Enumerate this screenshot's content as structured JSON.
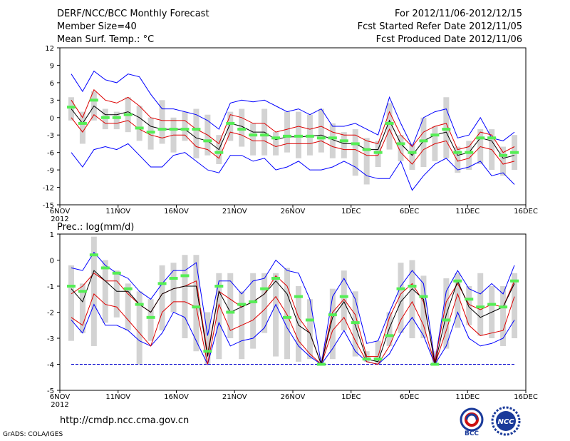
{
  "header": {
    "title": "DERF/NCC/BCC Monthly Forecast",
    "member_size": "Member Size=40",
    "variable": "Mean Surf. Temp.: °C",
    "period": "For 2012/11/06-2012/12/15",
    "started": "Fcst Started Refer Date 2012/11/05",
    "produced": "Fcst Produced Date 2012/11/06"
  },
  "footer": {
    "url": "http://cmdp.ncc.cma.gov.cn",
    "credit": "GrADS: COLA/IGES",
    "logo_left_text": "BCC",
    "logo_right_text": "NCC"
  },
  "colors": {
    "box": "#d3d3d3",
    "max_min": "#0000ff",
    "spread": "#dd0000",
    "mean": "#000000",
    "median": "#55ee55",
    "floor": "#0000cc"
  },
  "chart_data": [
    {
      "type": "line",
      "title": "Mean Surf. Temp.: °C",
      "x_tick_labels": [
        "6NOV",
        "11NOV",
        "16NOV",
        "21NOV",
        "26NOV",
        "1DEC",
        "6DEC",
        "11DEC",
        "16DEC"
      ],
      "year_label": "2012",
      "ylim": [
        -15,
        12
      ],
      "yticks": [
        "12",
        "9",
        "6",
        "3",
        "0",
        "-3",
        "-6",
        "-9",
        "-12",
        "-15"
      ],
      "days": 40,
      "series": [
        {
          "name": "max",
          "values": [
            7.5,
            4.5,
            8.0,
            6.5,
            6.0,
            7.5,
            7.0,
            4.0,
            1.5,
            1.5,
            1.0,
            0.5,
            -0.5,
            -2.0,
            2.5,
            3.0,
            2.7,
            3.0,
            2.0,
            1.0,
            1.5,
            0.5,
            1.5,
            -1.5,
            -1.5,
            -1.0,
            -2.0,
            -3.0,
            3.5,
            -1.0,
            -5.0,
            0.0,
            1.0,
            1.5,
            -3.5,
            -3.0,
            0.0,
            -3.5,
            -4.0,
            -2.5
          ]
        },
        {
          "name": "upper",
          "values": [
            3.0,
            0.0,
            4.8,
            3.0,
            2.5,
            3.5,
            2.0,
            0.0,
            -0.5,
            -0.5,
            -0.5,
            -2.0,
            -3.0,
            -4.5,
            0.5,
            0.0,
            -1.0,
            -1.0,
            -2.5,
            -2.0,
            -1.5,
            -2.0,
            -1.5,
            -2.5,
            -3.0,
            -3.0,
            -4.0,
            -4.5,
            1.0,
            -3.0,
            -5.0,
            -2.5,
            -1.5,
            -1.0,
            -5.5,
            -5.0,
            -2.5,
            -3.0,
            -6.0,
            -5.0
          ]
        },
        {
          "name": "mean",
          "values": [
            1.5,
            -1.0,
            2.0,
            0.5,
            0.5,
            1.0,
            0.0,
            -1.5,
            -2.0,
            -2.0,
            -2.0,
            -3.5,
            -4.0,
            -5.5,
            -1.0,
            -1.5,
            -2.5,
            -2.5,
            -3.8,
            -3.3,
            -3.3,
            -3.2,
            -3.0,
            -3.8,
            -4.5,
            -4.5,
            -5.5,
            -5.5,
            -0.5,
            -4.5,
            -6.5,
            -4.0,
            -3.0,
            -2.5,
            -6.5,
            -6.0,
            -3.5,
            -4.0,
            -7.0,
            -6.5
          ]
        },
        {
          "name": "lower",
          "values": [
            0.0,
            -2.5,
            0.5,
            -1.0,
            -1.0,
            -0.5,
            -2.0,
            -3.0,
            -3.5,
            -3.0,
            -3.0,
            -5.0,
            -5.5,
            -7.0,
            -2.5,
            -3.0,
            -4.0,
            -4.0,
            -5.0,
            -4.5,
            -4.5,
            -4.5,
            -4.0,
            -5.0,
            -5.5,
            -5.5,
            -6.5,
            -6.5,
            -2.0,
            -6.0,
            -8.0,
            -5.5,
            -4.5,
            -4.0,
            -7.5,
            -7.0,
            -5.0,
            -5.5,
            -8.0,
            -7.5
          ]
        },
        {
          "name": "min",
          "values": [
            -6.0,
            -8.5,
            -5.5,
            -5.0,
            -5.5,
            -4.5,
            -6.5,
            -8.5,
            -8.5,
            -6.5,
            -6.0,
            -7.5,
            -9.0,
            -9.5,
            -6.5,
            -6.5,
            -7.5,
            -7.0,
            -9.0,
            -8.5,
            -7.5,
            -9.0,
            -9.0,
            -8.5,
            -7.5,
            -8.5,
            -10.0,
            -10.5,
            -10.5,
            -7.5,
            -12.5,
            -10.0,
            -8.0,
            -7.0,
            -9.0,
            -8.5,
            -7.5,
            -10.0,
            -9.5,
            -11.5
          ]
        },
        {
          "name": "median",
          "values": [
            1.8,
            -1.0,
            3.0,
            0.0,
            0.0,
            0.5,
            -1.8,
            -2.5,
            -2.0,
            -2.0,
            -2.0,
            -2.0,
            -4.0,
            -6.0,
            -1.0,
            -2.0,
            -3.0,
            -3.0,
            -3.5,
            -3.2,
            -3.2,
            -3.2,
            -3.5,
            -3.5,
            -4.0,
            -4.5,
            -5.5,
            -6.0,
            -1.0,
            -4.5,
            -6.0,
            -4.0,
            -3.0,
            -2.0,
            -6.0,
            -6.0,
            -3.5,
            -3.5,
            -6.5,
            -6.0
          ]
        },
        {
          "name": "box_top",
          "values": [
            3.5,
            1.0,
            4.5,
            1.5,
            1.0,
            3.5,
            2.0,
            0.0,
            3.0,
            0.0,
            1.0,
            1.5,
            0.5,
            -3.0,
            1.0,
            1.5,
            -1.0,
            1.5,
            -2.5,
            1.0,
            1.0,
            0.5,
            1.5,
            -1.0,
            -2.5,
            -2.0,
            -3.5,
            -4.0,
            2.5,
            -3.0,
            -4.5,
            0.0,
            -1.5,
            3.5,
            -5.0,
            -4.0,
            -2.0,
            -2.0,
            -5.0,
            -3.0
          ]
        },
        {
          "name": "box_bottom",
          "values": [
            -0.5,
            -4.5,
            -0.5,
            -2.0,
            -2.0,
            -2.5,
            -4.0,
            -5.5,
            -4.5,
            -6.0,
            -4.0,
            -7.0,
            -6.5,
            -8.0,
            -4.0,
            -5.0,
            -6.5,
            -6.5,
            -6.5,
            -6.0,
            -7.0,
            -6.5,
            -6.0,
            -7.0,
            -7.0,
            -10.0,
            -11.5,
            -8.5,
            -5.5,
            -7.5,
            -9.0,
            -8.5,
            -7.5,
            -7.0,
            -9.5,
            -9.0,
            -8.0,
            -9.0,
            -10.0,
            -9.0
          ]
        }
      ]
    },
    {
      "type": "line",
      "title": "Prec.: log(mm/d)",
      "x_tick_labels": [
        "6NOV",
        "11NOV",
        "16NOV",
        "21NOV",
        "26NOV",
        "1DEC",
        "6DEC",
        "11DEC",
        "16DEC"
      ],
      "year_label": "2012",
      "ylim": [
        -5,
        1
      ],
      "yticks": [
        "1",
        "0",
        "-1",
        "-2",
        "-3",
        "-4",
        "-5"
      ],
      "floor": -4,
      "days": 40,
      "series": [
        {
          "name": "max",
          "values": [
            -0.3,
            -0.4,
            0.3,
            -0.2,
            -0.5,
            -0.7,
            -1.2,
            -1.5,
            -0.9,
            -0.4,
            -0.4,
            -0.1,
            -2.9,
            -0.8,
            -0.8,
            -1.3,
            -0.8,
            -0.7,
            0.0,
            -0.4,
            -0.5,
            -1.5,
            -4.0,
            -1.4,
            -0.7,
            -1.5,
            -3.2,
            -3.1,
            -2.0,
            -1.0,
            -0.4,
            -0.9,
            -3.9,
            -1.2,
            -0.4,
            -1.1,
            -1.3,
            -0.9,
            -1.3,
            -0.2
          ]
        },
        {
          "name": "upper",
          "values": [
            -1.3,
            -1.0,
            -0.5,
            -0.8,
            -0.8,
            -1.3,
            -1.7,
            -2.0,
            -1.3,
            -1.1,
            -1.0,
            -0.8,
            -3.6,
            -1.2,
            -1.5,
            -1.8,
            -1.6,
            -1.3,
            -0.6,
            -1.0,
            -2.2,
            -2.8,
            -4.0,
            -2.0,
            -1.5,
            -2.1,
            -3.7,
            -3.7,
            -2.2,
            -1.3,
            -0.9,
            -1.6,
            -3.9,
            -1.6,
            -0.9,
            -1.7,
            -1.9,
            -1.7,
            -1.8,
            -0.8
          ]
        },
        {
          "name": "mean",
          "values": [
            -1.1,
            -1.6,
            -0.4,
            -0.8,
            -1.2,
            -1.2,
            -1.7,
            -2.0,
            -1.3,
            -1.1,
            -1.0,
            -1.0,
            -3.7,
            -1.2,
            -2.0,
            -1.8,
            -1.6,
            -1.3,
            -0.8,
            -1.3,
            -2.5,
            -2.8,
            -4.0,
            -2.2,
            -1.6,
            -2.5,
            -3.8,
            -3.9,
            -2.6,
            -1.6,
            -1.1,
            -1.5,
            -4.0,
            -2.1,
            -0.8,
            -1.8,
            -2.2,
            -2.0,
            -1.8,
            -0.9
          ]
        },
        {
          "name": "lower",
          "values": [
            -2.2,
            -2.5,
            -1.3,
            -1.7,
            -1.8,
            -2.3,
            -2.8,
            -3.3,
            -2.0,
            -1.6,
            -1.6,
            -1.8,
            -4.0,
            -1.7,
            -2.7,
            -2.5,
            -2.3,
            -1.9,
            -1.4,
            -2.1,
            -3.1,
            -3.6,
            -4.0,
            -2.7,
            -2.2,
            -3.1,
            -3.9,
            -4.0,
            -3.3,
            -2.3,
            -1.6,
            -2.5,
            -4.0,
            -2.7,
            -1.3,
            -2.5,
            -2.9,
            -2.8,
            -2.7,
            -1.4
          ]
        },
        {
          "name": "min",
          "values": [
            -2.3,
            -2.8,
            -1.7,
            -2.5,
            -2.5,
            -2.7,
            -3.1,
            -3.3,
            -2.8,
            -2.0,
            -2.2,
            -3.1,
            -4.0,
            -2.4,
            -3.3,
            -3.1,
            -3.0,
            -2.6,
            -1.7,
            -2.6,
            -3.3,
            -3.7,
            -4.0,
            -3.4,
            -2.7,
            -3.5,
            -3.9,
            -4.0,
            -3.6,
            -2.8,
            -2.2,
            -2.9,
            -4.0,
            -3.3,
            -2.0,
            -3.0,
            -3.3,
            -3.2,
            -3.0,
            -2.3
          ]
        },
        {
          "name": "median",
          "values": [
            -1.0,
            -1.2,
            0.2,
            -0.3,
            -0.5,
            -1.1,
            -1.7,
            -2.2,
            -0.9,
            -0.7,
            -0.6,
            -1.8,
            -3.5,
            -1.0,
            -2.0,
            -1.7,
            -1.6,
            -1.1,
            -0.7,
            -2.2,
            -1.4,
            -2.3,
            -4.0,
            -2.1,
            -1.4,
            -2.4,
            -3.8,
            -3.8,
            -2.9,
            -1.1,
            -1.0,
            -1.4,
            -4.0,
            -2.3,
            -0.8,
            -1.5,
            -1.8,
            -1.7,
            -1.8,
            -0.8
          ]
        },
        {
          "name": "box_top",
          "values": [
            -0.2,
            -0.9,
            0.9,
            0.0,
            -0.4,
            -0.9,
            -1.2,
            -1.5,
            -0.2,
            -0.1,
            0.2,
            0.2,
            -2.0,
            -0.5,
            -0.5,
            -1.2,
            -0.5,
            -0.5,
            -0.5,
            -0.3,
            -1.0,
            -1.5,
            -3.7,
            -1.1,
            -0.4,
            -1.2,
            -3.5,
            -3.1,
            -2.0,
            -0.1,
            0.0,
            -0.6,
            -3.5,
            -0.7,
            -0.5,
            -1.0,
            -0.5,
            -1.0,
            -1.0,
            -0.5
          ]
        },
        {
          "name": "box_bottom",
          "values": [
            -3.1,
            -2.8,
            -3.3,
            -2.4,
            -2.2,
            -2.7,
            -4.0,
            -3.1,
            -2.7,
            -2.0,
            -3.0,
            -3.5,
            -4.0,
            -3.8,
            -3.0,
            -3.8,
            -3.4,
            -2.8,
            -3.7,
            -3.8,
            -3.9,
            -3.8,
            -4.0,
            -3.8,
            -2.7,
            -3.7,
            -3.9,
            -4.0,
            -3.3,
            -2.8,
            -3.0,
            -3.0,
            -4.0,
            -3.4,
            -2.6,
            -2.5,
            -2.9,
            -3.0,
            -3.3,
            -3.0
          ]
        }
      ]
    }
  ]
}
